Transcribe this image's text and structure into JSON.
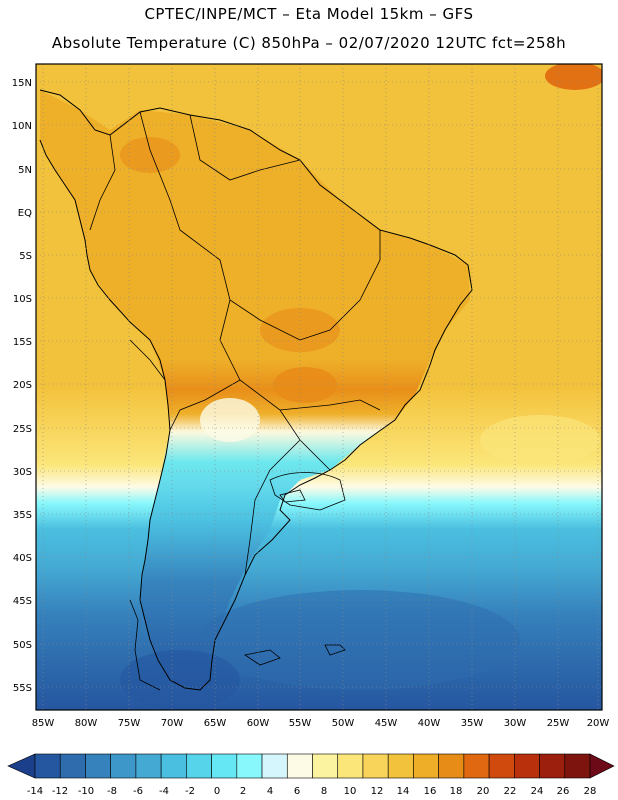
{
  "header": {
    "line1": "CPTEC/INPE/MCT –   Eta Model 15km – GFS",
    "line2": "Absolute Temperature (C) 850hPa – 02/07/2020 12UTC fct=258h"
  },
  "map": {
    "lat_labels": [
      "15N",
      "10N",
      "5N",
      "EQ",
      "5S",
      "10S",
      "15S",
      "20S",
      "25S",
      "30S",
      "35S",
      "40S",
      "45S",
      "50S",
      "55S"
    ],
    "lon_labels": [
      "85W",
      "80W",
      "75W",
      "70W",
      "65W",
      "60W",
      "55W",
      "50W",
      "45W",
      "40W",
      "35W",
      "30W",
      "25W",
      "20W"
    ]
  },
  "colorbar": {
    "labels": [
      "-14",
      "-12",
      "-10",
      "-8",
      "-6",
      "-4",
      "-2",
      "0",
      "2",
      "4",
      "6",
      "8",
      "10",
      "12",
      "14",
      "16",
      "18",
      "20",
      "22",
      "24",
      "26",
      "28"
    ],
    "colors": [
      "#1c3f8c",
      "#2557a0",
      "#2e6cae",
      "#3682bd",
      "#3d97c9",
      "#44aad4",
      "#4bbfe0",
      "#55d4ea",
      "#66e8f4",
      "#88f8fc",
      "#d4f6fc",
      "#fdfbe6",
      "#fbf3a0",
      "#fbe67a",
      "#f8d45a",
      "#f3c23c",
      "#eeae28",
      "#e88c18",
      "#e06810",
      "#cf4a0c",
      "#b8300c",
      "#9c1e0c",
      "#7e140e",
      "#6c0a18"
    ]
  }
}
